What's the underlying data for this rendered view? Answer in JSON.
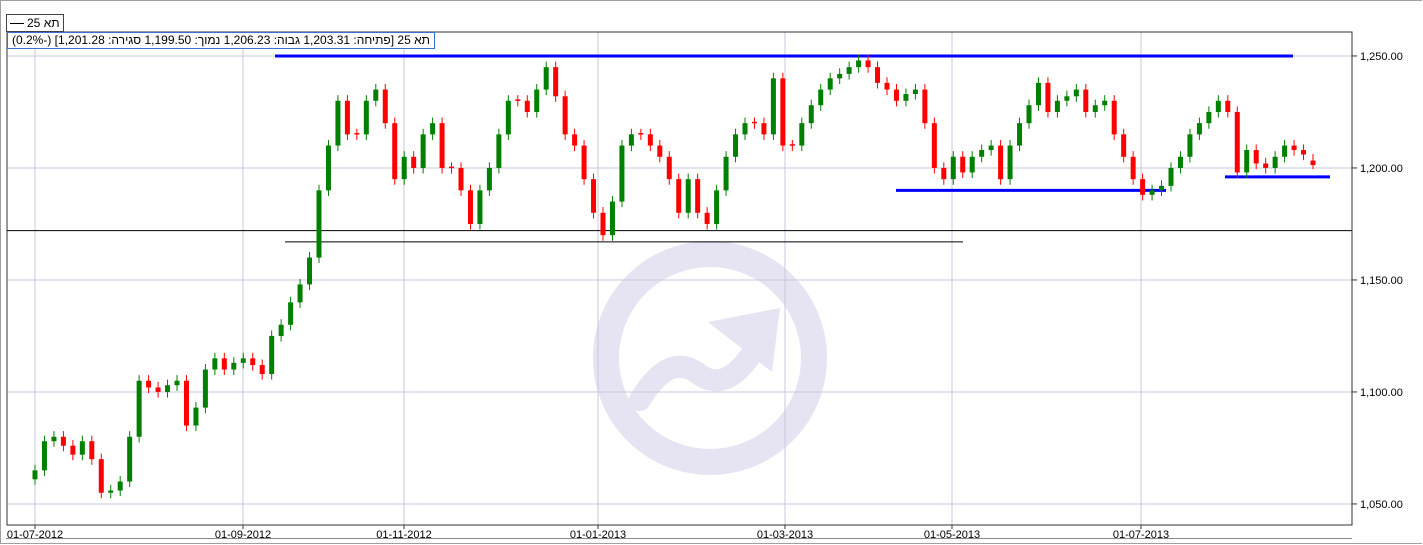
{
  "legend": {
    "series_label": "תא 25"
  },
  "info_bar": {
    "text": "תא 25 [פתיחה: 1,203.31  גבוה: 1,206.23  נמוך: 1,199.50  סגירה: 1,201.28] (-0.2%)"
  },
  "chart_data": {
    "type": "candlestick",
    "series_name": "תא 25",
    "x_tick_labels": [
      "01-07-2012",
      "01-09-2012",
      "01-11-2012",
      "01-01-2013",
      "01-03-2013",
      "01-05-2013",
      "01-07-2013"
    ],
    "y_tick_values": [
      1050,
      1100,
      1150,
      1200,
      1250
    ],
    "y_tick_labels": [
      "1,050.00",
      "1,100.00",
      "1,150.00",
      "1,200.00",
      "1,250.00"
    ],
    "ylim": [
      1040.6,
      1260.7
    ],
    "grid": true,
    "y_axis_position": "right",
    "close": [
      1065,
      1078,
      1080,
      1076,
      1072,
      1078,
      1070,
      1055,
      1056,
      1060,
      1080,
      1105,
      1102,
      1100,
      1103,
      1105,
      1085,
      1093,
      1110,
      1115,
      1110,
      1113,
      1115,
      1112,
      1108,
      1125,
      1130,
      1140,
      1148,
      1160,
      1190,
      1210,
      1230,
      1215,
      1215,
      1230,
      1235,
      1220,
      1195,
      1205,
      1200,
      1215,
      1220,
      1200,
      1200,
      1190,
      1175,
      1190,
      1200,
      1215,
      1230,
      1230,
      1225,
      1235,
      1245,
      1232,
      1215,
      1210,
      1195,
      1180,
      1170,
      1185,
      1210,
      1215,
      1215,
      1210,
      1205,
      1195,
      1180,
      1195,
      1180,
      1175,
      1190,
      1205,
      1215,
      1220,
      1220,
      1215,
      1240,
      1210,
      1210,
      1220,
      1228,
      1235,
      1240,
      1242,
      1245,
      1248,
      1245,
      1238,
      1235,
      1230,
      1233,
      1235,
      1220,
      1200,
      1195,
      1205,
      1198,
      1205,
      1208,
      1210,
      1195,
      1210,
      1220,
      1228,
      1238,
      1225,
      1230,
      1232,
      1235,
      1225,
      1228,
      1230,
      1215,
      1205,
      1195,
      1188,
      1190,
      1192,
      1200,
      1205,
      1215,
      1220,
      1225,
      1230,
      1225,
      1198,
      1208,
      1202,
      1200,
      1205,
      1210,
      1208,
      1206,
      1201.28
    ],
    "last_candle": {
      "open": 1203.31,
      "high": 1206.23,
      "low": 1199.5,
      "close": 1201.28,
      "change_pct": -0.2
    },
    "annotation_lines": [
      {
        "level": 1250,
        "color": "#0000ff"
      },
      {
        "level": 1190,
        "color": "#0000ff"
      },
      {
        "level": 1196,
        "color": "#0000ff"
      },
      {
        "level": 1172,
        "color": "#000000"
      },
      {
        "level": 1167,
        "color": "#000000"
      }
    ],
    "up_color": "#008000",
    "down_color": "#ff0000",
    "watermark_color": "#e6e4f2"
  }
}
